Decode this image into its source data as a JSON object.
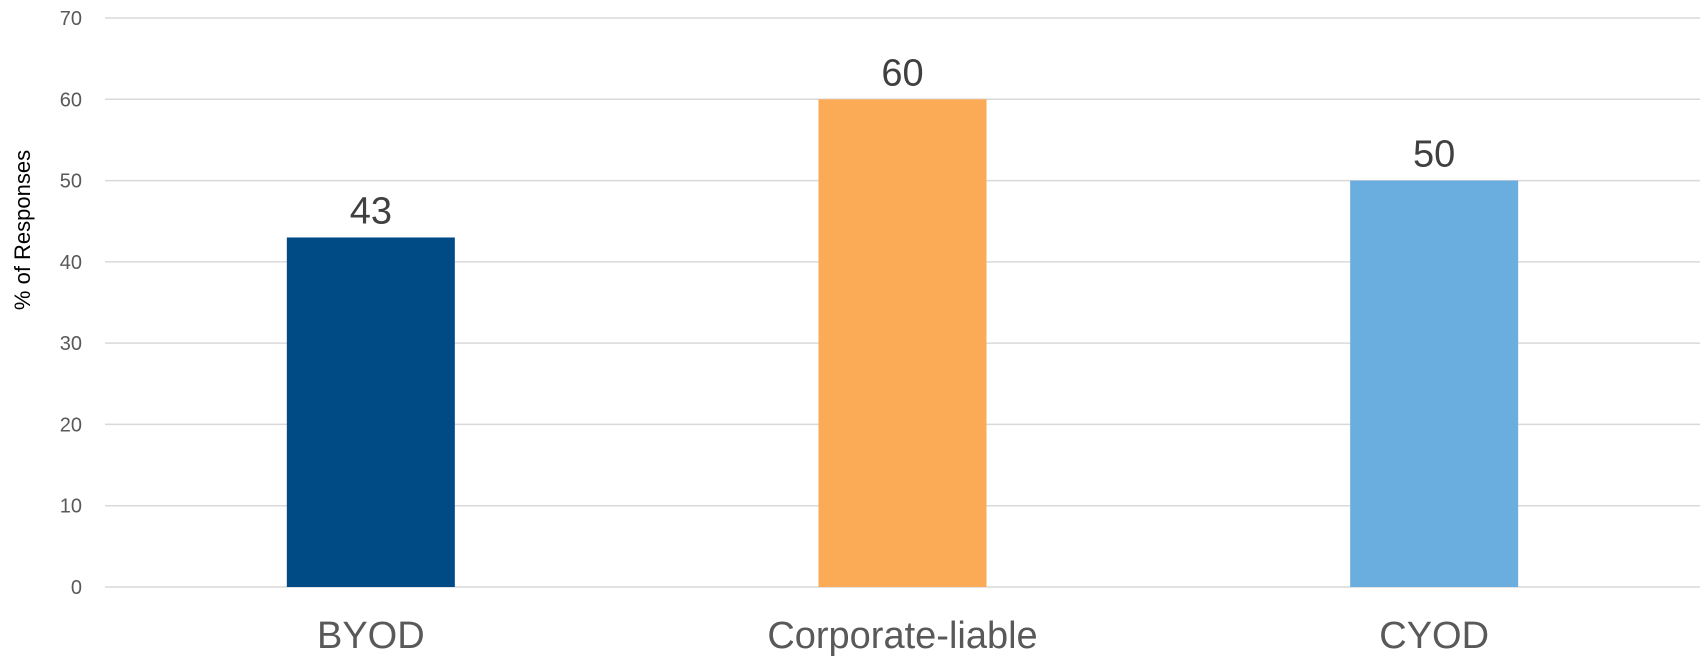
{
  "chart_data": {
    "type": "bar",
    "title": "",
    "xlabel": "",
    "ylabel": "% of Responses",
    "ylim": [
      0,
      70
    ],
    "yticks": [
      0,
      10,
      20,
      30,
      40,
      50,
      60,
      70
    ],
    "grid": true,
    "legend": "none",
    "categories": [
      "BYOD",
      "Corporate-liable",
      "CYOD"
    ],
    "values": [
      43,
      60,
      50
    ],
    "data_labels": [
      "43",
      "60",
      "50"
    ],
    "colors": [
      "#004a85",
      "#fbaa55",
      "#6aaddf"
    ]
  }
}
